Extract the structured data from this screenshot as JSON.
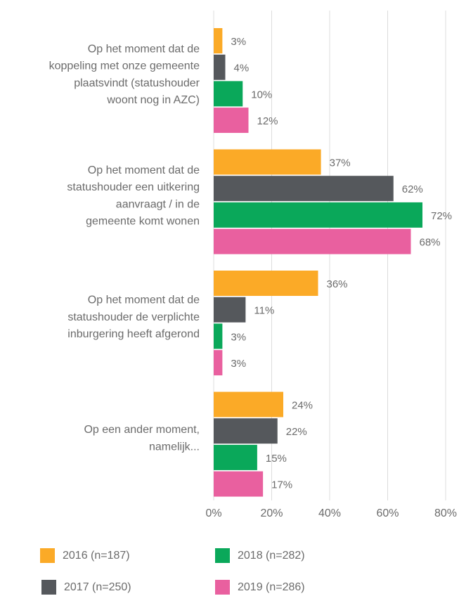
{
  "chart_data": {
    "type": "bar",
    "orientation": "horizontal",
    "categories": [
      [
        "Op het moment dat de",
        "koppeling met onze gemeente",
        "plaatsvindt (statushouder",
        "woont nog in AZC)"
      ],
      [
        "Op het moment dat de",
        "statushouder een uitkering",
        "aanvraagt / in de",
        "gemeente komt wonen"
      ],
      [
        "Op het moment dat de",
        "statushouder de verplichte",
        "inburgering heeft afgerond"
      ],
      [
        "Op een ander moment,",
        "namelijk..."
      ]
    ],
    "series": [
      {
        "name": "2016 (n=187)",
        "color": "#fbaa27",
        "values": [
          3,
          37,
          36,
          24
        ],
        "value_labels": [
          "3%",
          "37%",
          "36%",
          "24%"
        ]
      },
      {
        "name": "2017 (n=250)",
        "color": "#55585c",
        "values": [
          4,
          62,
          11,
          22
        ],
        "value_labels": [
          "4%",
          "62%",
          "11%",
          "22%"
        ]
      },
      {
        "name": "2018 (n=282)",
        "color": "#0aa85a",
        "values": [
          10,
          72,
          3,
          15
        ],
        "value_labels": [
          "10%",
          "72%",
          "3%",
          "15%"
        ]
      },
      {
        "name": "2019 (n=286)",
        "color": "#e9609f",
        "values": [
          12,
          68,
          3,
          17
        ],
        "value_labels": [
          "12%",
          "68%",
          "3%",
          "17%"
        ]
      }
    ],
    "xlim": [
      0,
      80
    ],
    "xticks": [
      {
        "value": 0,
        "label": "0%"
      },
      {
        "value": 20,
        "label": "20%"
      },
      {
        "value": 40,
        "label": "40%"
      },
      {
        "value": 60,
        "label": "60%"
      },
      {
        "value": 80,
        "label": "80%"
      }
    ],
    "grid": true,
    "legend": "bottom"
  }
}
